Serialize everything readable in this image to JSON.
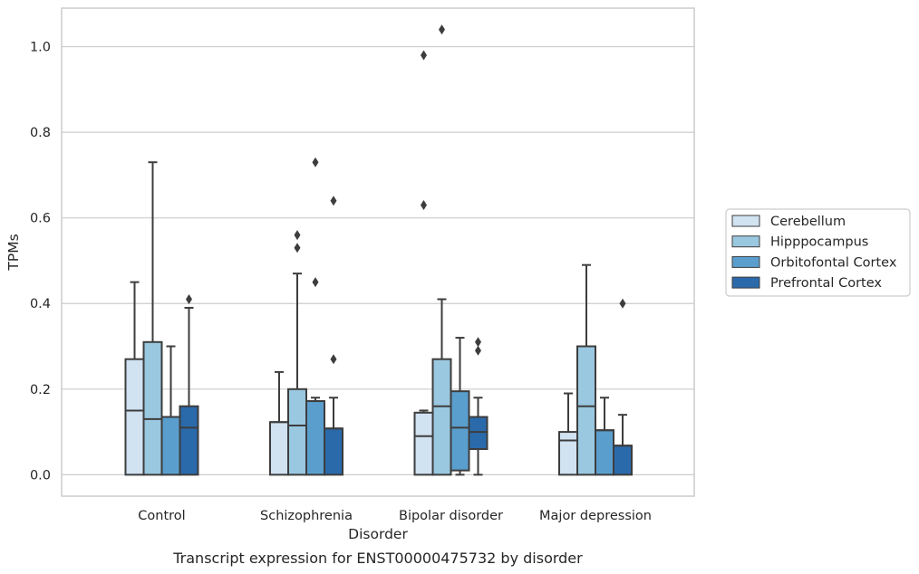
{
  "chart_data": {
    "type": "box",
    "caption": "Transcript expression for ENST00000475732 by disorder",
    "xlabel": "Disorder",
    "ylabel": "TPMs",
    "ylim": [
      -0.05,
      1.09
    ],
    "yticks": [
      0.0,
      0.2,
      0.4,
      0.6,
      0.8,
      1.0
    ],
    "ytick_labels": [
      "0.0",
      "0.2",
      "0.4",
      "0.6",
      "0.8",
      "1.0"
    ],
    "grid": "horizontal",
    "legend_position": "right",
    "categories": [
      "Control",
      "Schizophrenia",
      "Bipolar disorder",
      "Major depression"
    ],
    "series": [
      {
        "name": "Cerebellum",
        "color": "#d1e2f1",
        "boxes": [
          {
            "whislo": 0.0,
            "q1": 0.0,
            "med": 0.15,
            "q3": 0.27,
            "whishi": 0.45,
            "fliers": []
          },
          {
            "whislo": 0.0,
            "q1": 0.0,
            "med": 0.123,
            "q3": 0.123,
            "whishi": 0.24,
            "fliers": []
          },
          {
            "whislo": 0.0,
            "q1": 0.0,
            "med": 0.09,
            "q3": 0.145,
            "whishi": 0.15,
            "fliers": [
              0.63,
              0.98
            ]
          },
          {
            "whislo": 0.0,
            "q1": 0.0,
            "med": 0.08,
            "q3": 0.1,
            "whishi": 0.19,
            "fliers": []
          }
        ]
      },
      {
        "name": "Hipppocampus",
        "color": "#9ac8e0",
        "boxes": [
          {
            "whislo": 0.0,
            "q1": 0.0,
            "med": 0.13,
            "q3": 0.31,
            "whishi": 0.73,
            "fliers": []
          },
          {
            "whislo": 0.0,
            "q1": 0.0,
            "med": 0.115,
            "q3": 0.2,
            "whishi": 0.47,
            "fliers": [
              0.53,
              0.56
            ]
          },
          {
            "whislo": 0.0,
            "q1": 0.0,
            "med": 0.16,
            "q3": 0.27,
            "whishi": 0.41,
            "fliers": [
              1.04
            ]
          },
          {
            "whislo": 0.0,
            "q1": 0.0,
            "med": 0.16,
            "q3": 0.3,
            "whishi": 0.49,
            "fliers": []
          }
        ]
      },
      {
        "name": "Orbitofontal Cortex",
        "color": "#5a9ecd",
        "boxes": [
          {
            "whislo": 0.0,
            "q1": 0.0,
            "med": 0.135,
            "q3": 0.135,
            "whishi": 0.3,
            "fliers": []
          },
          {
            "whislo": 0.0,
            "q1": 0.0,
            "med": 0.172,
            "q3": 0.172,
            "whishi": 0.18,
            "fliers": [
              0.45,
              0.73
            ]
          },
          {
            "whislo": 0.0,
            "q1": 0.01,
            "med": 0.11,
            "q3": 0.195,
            "whishi": 0.32,
            "fliers": []
          },
          {
            "whislo": 0.0,
            "q1": 0.0,
            "med": 0.104,
            "q3": 0.104,
            "whishi": 0.18,
            "fliers": []
          }
        ]
      },
      {
        "name": "Prefrontal Cortex",
        "color": "#2a6aab",
        "boxes": [
          {
            "whislo": 0.0,
            "q1": 0.0,
            "med": 0.11,
            "q3": 0.16,
            "whishi": 0.39,
            "fliers": [
              0.41
            ]
          },
          {
            "whislo": 0.0,
            "q1": 0.0,
            "med": 0.108,
            "q3": 0.108,
            "whishi": 0.18,
            "fliers": [
              0.27,
              0.64
            ]
          },
          {
            "whislo": 0.0,
            "q1": 0.06,
            "med": 0.1,
            "q3": 0.135,
            "whishi": 0.18,
            "fliers": [
              0.29,
              0.31
            ]
          },
          {
            "whislo": 0.0,
            "q1": 0.0,
            "med": 0.068,
            "q3": 0.068,
            "whishi": 0.14,
            "fliers": [
              0.4
            ]
          }
        ]
      }
    ]
  }
}
